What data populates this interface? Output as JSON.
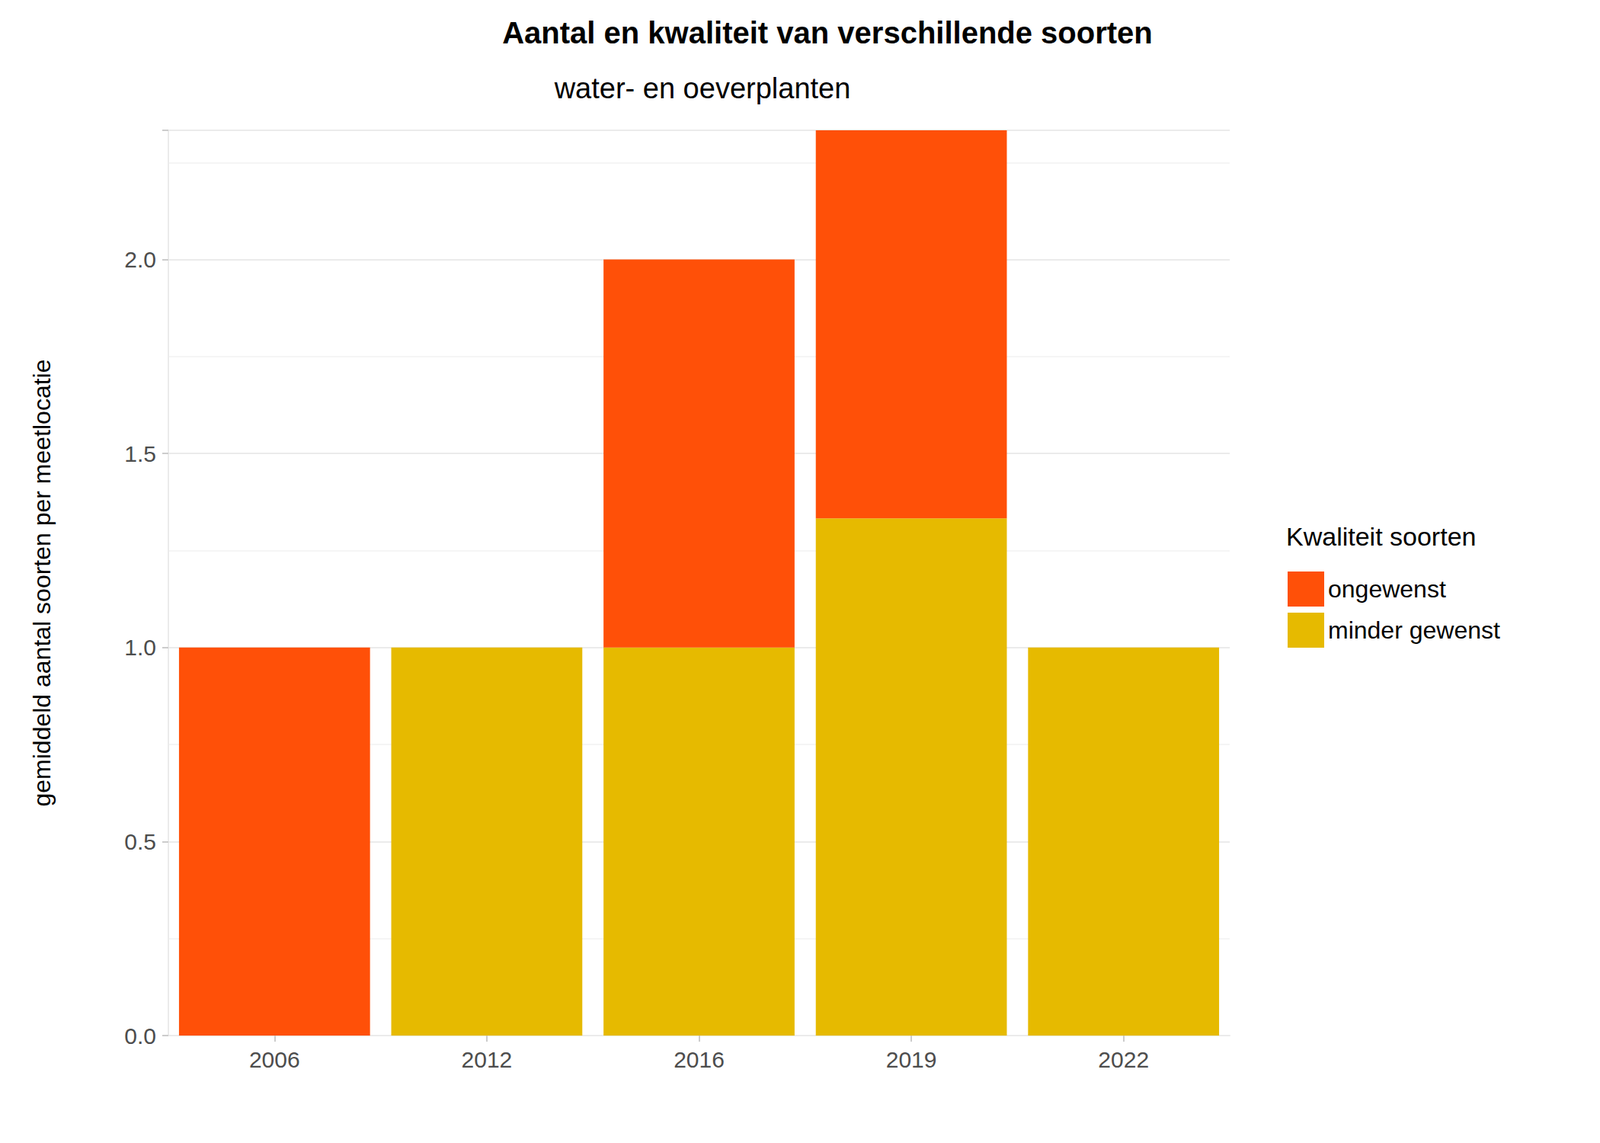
{
  "chart_data": {
    "type": "bar",
    "title": "Aantal en kwaliteit van verschillende soorten",
    "subtitle": "water- en oeverplanten",
    "y_label": "gemiddeld aantal soorten per meetlocatie",
    "legend_title": "Kwaliteit soorten",
    "categories": [
      "2006",
      "2012",
      "2016",
      "2019",
      "2022"
    ],
    "series": [
      {
        "name": "ongewenst",
        "color": "#FF5008",
        "values": [
          1,
          null,
          1,
          1,
          null
        ]
      },
      {
        "name": "minder gewenst",
        "color": "#E6BA00",
        "values": [
          null,
          1,
          1,
          1.333,
          1
        ]
      }
    ],
    "stacked": true,
    "ylim": [
      0,
      2.333
    ],
    "yticks": [
      {
        "value": 0,
        "label": "0.0"
      },
      {
        "value": 0.5,
        "label": "0.5"
      },
      {
        "value": 1,
        "label": "1.0"
      },
      {
        "value": 1.5,
        "label": "1.5"
      },
      {
        "value": 2,
        "label": "2.0"
      }
    ],
    "grid": true,
    "legend": "right"
  }
}
